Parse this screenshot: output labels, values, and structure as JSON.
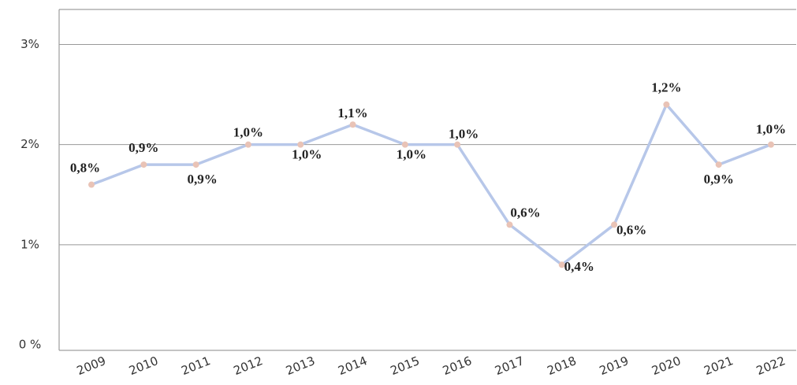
{
  "chart_data": {
    "type": "line",
    "categories": [
      "2009",
      "2010",
      "2011",
      "2012",
      "2013",
      "2014",
      "2015",
      "2016",
      "2017",
      "2018",
      "2019",
      "2020",
      "2021",
      "2022"
    ],
    "series": [
      {
        "color": "#b7c7e9",
        "marker_color": "#e9c3b6",
        "axis": "y2",
        "values": [
          0.8,
          0.9,
          0.9,
          1.0,
          1.0,
          1.1,
          1.0,
          1.0,
          0.6,
          0.4,
          0.6,
          1.2,
          0.9,
          1.0
        ],
        "value_labels": [
          "0,8%",
          "0,9%",
          "0,9%",
          "1,0%",
          "1,0%",
          "1,1%",
          "1,0%",
          "1,0%",
          "0,6%",
          "0,4%",
          "0,6%",
          "1,2%",
          "0,9%",
          "1,0%"
        ]
      }
    ],
    "ylim": [
      0,
      3.35
    ],
    "yticks": [
      {
        "value": 0,
        "label": "0 %"
      },
      {
        "value": 1,
        "label": "1%"
      },
      {
        "value": 2,
        "label": "2%"
      },
      {
        "value": 3,
        "label": "3%"
      }
    ],
    "y2lim": [
      0,
      1.675
    ],
    "grid": true
  }
}
